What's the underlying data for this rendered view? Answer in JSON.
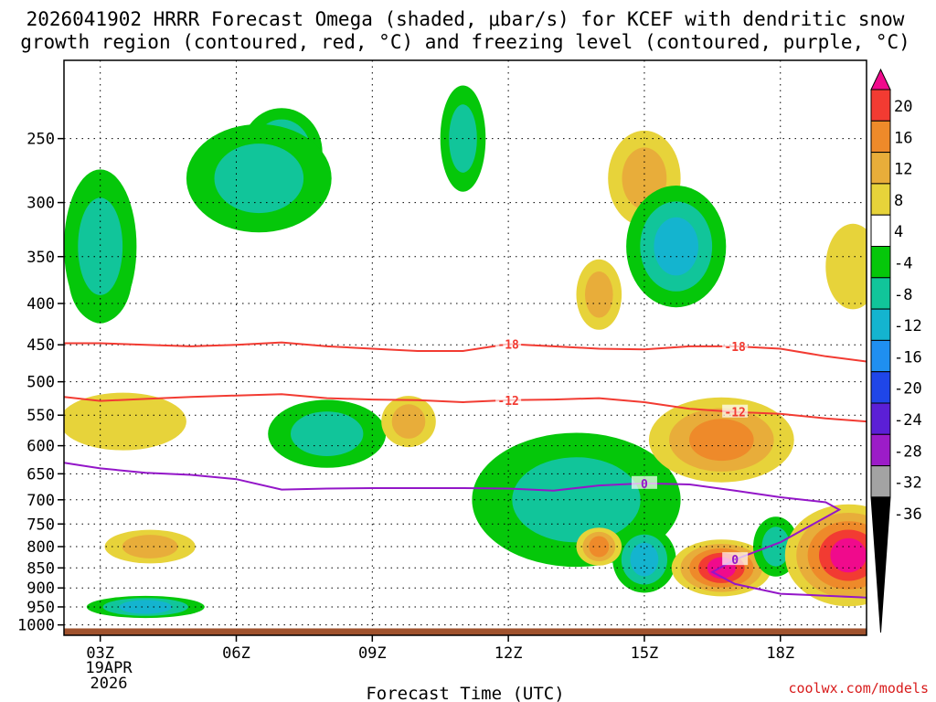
{
  "chart_data": {
    "type": "heatmap",
    "title_line1": "2026041902 HRRR Forecast Omega (shaded, μbar/s) for KCEF with dendritic snow",
    "title_line2": "growth region (contoured, red, °C) and freezing level (contoured, purple, °C)",
    "xlabel": "Forecast Time (UTC)",
    "date_label_line1": "19APR",
    "date_label_line2": "2026",
    "credit": "coolwx.com/models",
    "x_units": "hours after 00Z 19APR2026",
    "xlim": [
      2.2,
      19.9
    ],
    "x_ticks": [
      {
        "value": 3,
        "label": "03Z"
      },
      {
        "value": 6,
        "label": "06Z"
      },
      {
        "value": 9,
        "label": "09Z"
      },
      {
        "value": 12,
        "label": "12Z"
      },
      {
        "value": 15,
        "label": "15Z"
      },
      {
        "value": 18,
        "label": "18Z"
      }
    ],
    "y_units": "hPa",
    "y_scale": "log",
    "ylim": [
      1030,
      200
    ],
    "y_ticks": [
      250,
      300,
      350,
      400,
      450,
      500,
      550,
      600,
      650,
      700,
      750,
      800,
      850,
      900,
      950,
      1000
    ],
    "grid": "dotted",
    "colorbar": {
      "labels": [
        "20",
        "16",
        "12",
        "8",
        "4",
        "-4",
        "-8",
        "-12",
        "-16",
        "-20",
        "-24",
        "-28",
        "-32",
        "-36"
      ],
      "colors": [
        "#f00a8c",
        "#f23b32",
        "#ee8a2a",
        "#e8ad3a",
        "#e7d33a",
        "#ffffff",
        "#05c70a",
        "#11c59a",
        "#14b4cf",
        "#1f8ff0",
        "#1f46e8",
        "#5b1fd6",
        "#9c1cc8",
        "#a3a3a3",
        "#000000"
      ]
    },
    "omega_features": [
      {
        "x": 3.0,
        "p": 370,
        "omega": -16,
        "rx": 0.7,
        "ry": 90
      },
      {
        "x": 3.0,
        "p": 340,
        "omega": -8,
        "rx": 0.8,
        "ry": 140
      },
      {
        "x": 7.0,
        "p": 260,
        "omega": -12,
        "rx": 0.9,
        "ry": 60
      },
      {
        "x": 6.5,
        "p": 280,
        "omega": -8,
        "rx": 1.6,
        "ry": 80
      },
      {
        "x": 8.0,
        "p": 580,
        "omega": -24,
        "rx": 0.6,
        "ry": 40
      },
      {
        "x": 8.0,
        "p": 580,
        "omega": -8,
        "rx": 1.3,
        "ry": 100
      },
      {
        "x": 11.0,
        "p": 250,
        "omega": -8,
        "rx": 0.5,
        "ry": 70
      },
      {
        "x": 3.5,
        "p": 560,
        "omega": 4,
        "rx": 1.4,
        "ry": 80
      },
      {
        "x": 4.1,
        "p": 800,
        "omega": 8,
        "rx": 1.0,
        "ry": 60
      },
      {
        "x": 9.8,
        "p": 560,
        "omega": 8,
        "rx": 0.6,
        "ry": 70
      },
      {
        "x": 14.0,
        "p": 390,
        "omega": 8,
        "rx": 0.5,
        "ry": 70
      },
      {
        "x": 15.0,
        "p": 280,
        "omega": 8,
        "rx": 0.8,
        "ry": 70
      },
      {
        "x": 15.7,
        "p": 340,
        "omega": -12,
        "rx": 1.1,
        "ry": 110
      },
      {
        "x": 13.5,
        "p": 700,
        "omega": -8,
        "rx": 2.3,
        "ry": 250
      },
      {
        "x": 15.0,
        "p": 850,
        "omega": -28,
        "rx": 0.3,
        "ry": 50
      },
      {
        "x": 15.0,
        "p": 830,
        "omega": -12,
        "rx": 0.7,
        "ry": 140
      },
      {
        "x": 14.0,
        "p": 800,
        "omega": 12,
        "rx": 0.5,
        "ry": 70
      },
      {
        "x": 16.7,
        "p": 590,
        "omega": 12,
        "rx": 1.6,
        "ry": 130
      },
      {
        "x": 16.7,
        "p": 850,
        "omega": 20,
        "rx": 1.1,
        "ry": 120
      },
      {
        "x": 17.9,
        "p": 790,
        "omega": -28,
        "rx": 0.3,
        "ry": 50
      },
      {
        "x": 17.9,
        "p": 800,
        "omega": -8,
        "rx": 0.5,
        "ry": 120
      },
      {
        "x": 19.5,
        "p": 820,
        "omega": 20,
        "rx": 1.4,
        "ry": 220
      },
      {
        "x": 19.6,
        "p": 360,
        "omega": 4,
        "rx": 0.6,
        "ry": 80
      },
      {
        "x": 4.0,
        "p": 950,
        "omega": -12,
        "rx": 1.3,
        "ry": 40
      }
    ],
    "contours": [
      {
        "name": "dgz-top",
        "label": "-18",
        "color": "#f23b32",
        "x": [
          2.2,
          3.0,
          4.0,
          5.0,
          6.0,
          7.0,
          8.0,
          9.0,
          10.0,
          11.0,
          12.0,
          13.0,
          14.0,
          15.0,
          16.0,
          17.0,
          18.0,
          19.0,
          19.9
        ],
        "p": [
          448,
          448,
          450,
          452,
          450,
          447,
          452,
          455,
          458,
          458,
          449,
          452,
          455,
          456,
          452,
          452,
          455,
          465,
          472
        ]
      },
      {
        "name": "dgz-bottom",
        "label": "-12",
        "color": "#f23b32",
        "x": [
          2.2,
          3.0,
          4.0,
          5.0,
          6.0,
          7.0,
          8.0,
          9.0,
          10.0,
          11.0,
          12.0,
          13.0,
          14.0,
          15.0,
          16.0,
          17.0,
          18.0,
          19.0,
          19.9
        ],
        "p": [
          522,
          528,
          525,
          522,
          520,
          518,
          524,
          526,
          527,
          530,
          527,
          526,
          524,
          530,
          540,
          545,
          548,
          555,
          560
        ]
      },
      {
        "name": "freezing-level",
        "label": "0",
        "color": "#9316c8",
        "x": [
          2.2,
          3.0,
          4.0,
          5.0,
          6.0,
          7.0,
          8.0,
          9.0,
          10.0,
          11.0,
          12.0,
          13.0,
          14.0,
          15.0,
          16.0,
          17.0,
          18.0,
          19.0,
          19.3,
          18.0,
          17.0,
          16.5,
          17.0,
          18.0,
          19.9
        ],
        "p": [
          630,
          640,
          648,
          652,
          660,
          680,
          678,
          677,
          677,
          677,
          678,
          682,
          672,
          668,
          670,
          682,
          695,
          705,
          720,
          790,
          830,
          860,
          890,
          915,
          925
        ]
      }
    ],
    "terrain_surface_hpa": 1010
  }
}
